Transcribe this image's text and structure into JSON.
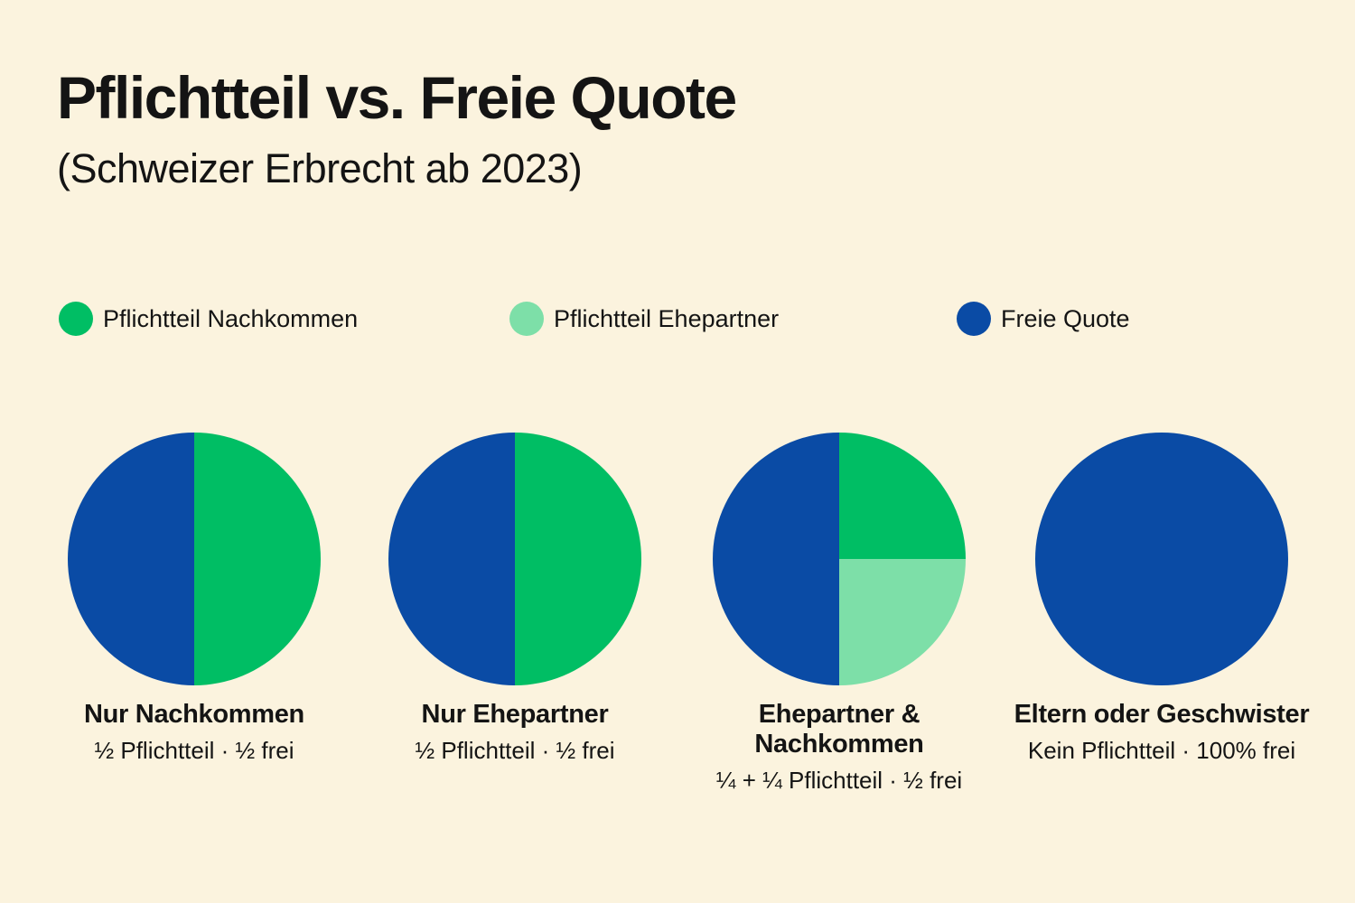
{
  "page": {
    "title": "Pflichtteil vs. Freie Quote",
    "subtitle": "(Schweizer Erbrecht ab 2023)",
    "background_color": "#FBF3DE",
    "text_color": "#141414"
  },
  "colors": {
    "green": "#00BE64",
    "light_green": "#7DDFA8",
    "blue": "#0A4BA5"
  },
  "legend": {
    "position": "top",
    "items": [
      {
        "label": "Pflichtteil Nachkommen",
        "color": "#00BE64"
      },
      {
        "label": "Pflichtteil Ehepartner",
        "color": "#7DDFA8"
      },
      {
        "label": "Freie Quote",
        "color": "#0A4BA5"
      }
    ]
  },
  "chart_data": [
    {
      "type": "pie",
      "title": "Nur Nachkommen",
      "caption": "½ Pflichtteil · ½ frei",
      "start_angle_deg": 0,
      "direction": "clockwise",
      "slices": [
        {
          "label": "Pflichtteil Nachkommen",
          "fraction": 0.5,
          "display": "½",
          "color": "#00BE64"
        },
        {
          "label": "Freie Quote",
          "fraction": 0.5,
          "display": "½",
          "color": "#0A4BA5"
        }
      ]
    },
    {
      "type": "pie",
      "title": "Nur Ehepartner",
      "caption": "½ Pflichtteil · ½ frei",
      "start_angle_deg": 0,
      "direction": "clockwise",
      "slices": [
        {
          "label": "Pflichtteil",
          "fraction": 0.5,
          "display": "½",
          "color": "#00BE64"
        },
        {
          "label": "Freie Quote",
          "fraction": 0.5,
          "display": "½",
          "color": "#0A4BA5"
        }
      ]
    },
    {
      "type": "pie",
      "title": "Ehepartner & Nachkommen",
      "caption": "¼ + ¼ Pflichtteil · ½ frei",
      "start_angle_deg": 0,
      "direction": "clockwise",
      "slices": [
        {
          "label": "Pflichtteil Nachkommen",
          "fraction": 0.25,
          "display": "¼",
          "color": "#00BE64"
        },
        {
          "label": "Pflichtteil Ehepartner",
          "fraction": 0.25,
          "display": "¼",
          "color": "#7DDFA8"
        },
        {
          "label": "Freie Quote",
          "fraction": 0.5,
          "display": "½",
          "color": "#0A4BA5"
        }
      ]
    },
    {
      "type": "pie",
      "title": "Eltern oder Geschwister",
      "caption": "Kein Pflichtteil · 100% frei",
      "start_angle_deg": 0,
      "direction": "clockwise",
      "slices": [
        {
          "label": "Freie Quote",
          "fraction": 1.0,
          "display": "100%",
          "color": "#0A4BA5"
        }
      ]
    }
  ]
}
